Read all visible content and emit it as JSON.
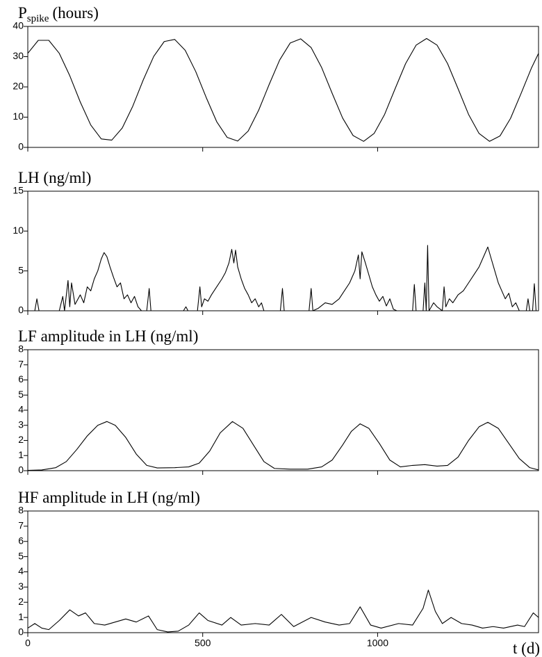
{
  "chart_data": [
    {
      "type": "line",
      "title": "P",
      "title_subscript": "spike",
      "title_suffix": "(hours)",
      "color": "#000000",
      "xlim": [
        0,
        1460
      ],
      "ylim": [
        0,
        40
      ],
      "yticks": [
        0,
        10,
        20,
        30,
        40
      ],
      "x": [
        0,
        30,
        60,
        90,
        120,
        150,
        180,
        210,
        240,
        270,
        300,
        330,
        360,
        390,
        420,
        450,
        480,
        510,
        540,
        570,
        600,
        630,
        660,
        690,
        720,
        750,
        780,
        810,
        840,
        870,
        900,
        930,
        960,
        990,
        1020,
        1050,
        1080,
        1110,
        1140,
        1170,
        1200,
        1230,
        1260,
        1290,
        1320,
        1350,
        1380,
        1410,
        1440,
        1460
      ],
      "values": [
        31.1,
        35.4,
        35.4,
        31.1,
        23.7,
        15.0,
        7.4,
        2.8,
        2.4,
        6.4,
        13.6,
        22.3,
        30.1,
        35.0,
        35.7,
        32.1,
        25.1,
        16.5,
        8.5,
        3.3,
        2.1,
        5.4,
        12.3,
        20.8,
        28.9,
        34.5,
        35.9,
        33.0,
        26.4,
        17.9,
        9.7,
        3.9,
        2.0,
        4.6,
        10.9,
        19.4,
        27.7,
        33.8,
        36.0,
        33.8,
        27.7,
        19.4,
        10.9,
        4.6,
        2.0,
        3.8,
        9.6,
        17.8,
        26.3,
        31.1
      ]
    },
    {
      "type": "line",
      "title": "LH (ng/ml)",
      "color": "#000000",
      "xlim": [
        0,
        1460
      ],
      "ylim": [
        0,
        15
      ],
      "yticks": [
        0,
        5,
        10,
        15
      ],
      "x": [
        0,
        20,
        26,
        32,
        90,
        100,
        105,
        115,
        120,
        125,
        135,
        150,
        160,
        170,
        180,
        190,
        200,
        210,
        218,
        226,
        235,
        245,
        255,
        265,
        275,
        285,
        295,
        305,
        315,
        325,
        340,
        347,
        352,
        445,
        452,
        458,
        485,
        492,
        497,
        505,
        515,
        525,
        540,
        555,
        565,
        575,
        583,
        589,
        594,
        600,
        610,
        620,
        630,
        640,
        650,
        660,
        668,
        675,
        722,
        728,
        733,
        804,
        810,
        815,
        830,
        850,
        870,
        890,
        905,
        920,
        935,
        945,
        950,
        955,
        965,
        975,
        985,
        995,
        1005,
        1015,
        1025,
        1035,
        1045,
        1055,
        1100,
        1105,
        1110,
        1130,
        1135,
        1139,
        1143,
        1147,
        1160,
        1170,
        1185,
        1190,
        1195,
        1205,
        1215,
        1230,
        1245,
        1260,
        1275,
        1290,
        1305,
        1315,
        1325,
        1335,
        1345,
        1355,
        1365,
        1375,
        1385,
        1395,
        1405,
        1425,
        1430,
        1435,
        1443,
        1448,
        1453,
        1460
      ],
      "values": [
        0,
        0,
        1.5,
        0,
        0,
        1.8,
        0,
        3.8,
        0.5,
        3.5,
        0.8,
        2.0,
        1.0,
        3.0,
        2.5,
        4.0,
        5.0,
        6.5,
        7.3,
        6.8,
        5.5,
        4.2,
        3.0,
        3.5,
        1.5,
        2.0,
        1.0,
        1.8,
        0.5,
        0,
        0,
        2.8,
        0,
        0,
        0.5,
        0,
        0,
        3.0,
        0.5,
        1.5,
        1.2,
        2.0,
        3.0,
        4.0,
        4.8,
        6.0,
        7.7,
        6.0,
        7.6,
        5.5,
        4.0,
        2.8,
        2.0,
        1.0,
        1.5,
        0.5,
        1.0,
        0,
        0,
        2.8,
        0,
        0,
        2.8,
        0,
        0.3,
        1.0,
        0.8,
        1.5,
        2.5,
        3.5,
        5.0,
        7.0,
        4.0,
        7.4,
        6.0,
        4.5,
        3.0,
        2.0,
        1.2,
        1.8,
        0.6,
        1.5,
        0.2,
        0,
        0,
        3.3,
        0,
        0,
        3.5,
        0,
        8.2,
        0,
        1.0,
        0.5,
        0,
        3.0,
        0.5,
        1.5,
        1.0,
        2.0,
        2.5,
        3.5,
        4.5,
        5.5,
        7.0,
        8.0,
        6.5,
        5.0,
        3.5,
        2.5,
        1.5,
        2.2,
        0.5,
        1.0,
        0,
        0,
        1.5,
        0,
        0,
        3.4,
        0,
        0
      ]
    },
    {
      "type": "line",
      "title": "LF amplitude in LH (ng/ml)",
      "color": "#000000",
      "xlim": [
        0,
        1460
      ],
      "ylim": [
        0,
        8
      ],
      "yticks": [
        0,
        1,
        2,
        3,
        4,
        5,
        6,
        7,
        8
      ],
      "x": [
        0,
        40,
        80,
        110,
        140,
        170,
        200,
        226,
        250,
        280,
        310,
        340,
        370,
        420,
        460,
        490,
        520,
        550,
        585,
        615,
        645,
        675,
        705,
        750,
        800,
        840,
        870,
        900,
        925,
        950,
        975,
        1005,
        1035,
        1065,
        1100,
        1135,
        1170,
        1200,
        1230,
        1260,
        1290,
        1315,
        1345,
        1375,
        1405,
        1435,
        1460
      ],
      "values": [
        0.02,
        0.05,
        0.2,
        0.6,
        1.4,
        2.3,
        3.0,
        3.25,
        3.0,
        2.2,
        1.1,
        0.35,
        0.18,
        0.2,
        0.25,
        0.5,
        1.3,
        2.5,
        3.25,
        2.8,
        1.7,
        0.6,
        0.15,
        0.1,
        0.1,
        0.25,
        0.7,
        1.7,
        2.6,
        3.1,
        2.8,
        1.8,
        0.7,
        0.25,
        0.35,
        0.4,
        0.3,
        0.35,
        0.9,
        2.0,
        2.9,
        3.2,
        2.8,
        1.8,
        0.8,
        0.2,
        0.05
      ]
    },
    {
      "type": "line",
      "title": "HF amplitude in LH (ng/ml)",
      "color": "#000000",
      "x_label": "t (d)",
      "xlim": [
        0,
        1460
      ],
      "xticks": [
        0,
        500,
        1000
      ],
      "ylim": [
        0,
        8
      ],
      "yticks": [
        0,
        1,
        2,
        3,
        4,
        5,
        6,
        7,
        8
      ],
      "x": [
        0,
        20,
        40,
        60,
        90,
        120,
        145,
        165,
        190,
        220,
        250,
        280,
        310,
        345,
        370,
        400,
        430,
        460,
        490,
        515,
        555,
        580,
        610,
        650,
        690,
        725,
        760,
        810,
        850,
        890,
        920,
        950,
        980,
        1010,
        1060,
        1100,
        1130,
        1145,
        1165,
        1185,
        1210,
        1240,
        1270,
        1300,
        1330,
        1360,
        1400,
        1420,
        1445,
        1460
      ],
      "values": [
        0.3,
        0.6,
        0.3,
        0.2,
        0.8,
        1.5,
        1.1,
        1.3,
        0.6,
        0.5,
        0.7,
        0.9,
        0.7,
        1.1,
        0.2,
        0.05,
        0.1,
        0.5,
        1.3,
        0.8,
        0.5,
        1.0,
        0.5,
        0.6,
        0.5,
        1.2,
        0.4,
        1.0,
        0.7,
        0.5,
        0.6,
        1.7,
        0.5,
        0.3,
        0.6,
        0.5,
        1.6,
        2.8,
        1.4,
        0.6,
        1.0,
        0.6,
        0.5,
        0.3,
        0.4,
        0.3,
        0.5,
        0.4,
        1.3,
        1.0
      ]
    }
  ]
}
